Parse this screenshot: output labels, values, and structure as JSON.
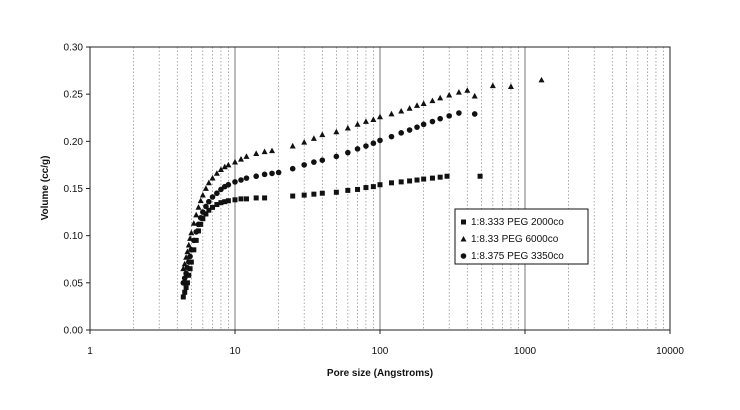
{
  "chart_data": {
    "type": "scatter",
    "title": "",
    "xlabel": "Pore size (Angstroms)",
    "ylabel": "Volume (cc/g)",
    "xscale": "log",
    "xlim": [
      1,
      10000
    ],
    "ylim": [
      0,
      0.3
    ],
    "x_ticks": [
      "1",
      "10",
      "100",
      "1000",
      "10000"
    ],
    "y_ticks": [
      "0.00",
      "0.05",
      "0.10",
      "0.15",
      "0.20",
      "0.25",
      "0.30"
    ],
    "grid": {
      "x_major": true,
      "x_minor": true,
      "y": false
    },
    "legend_position": "right-middle",
    "series": [
      {
        "name": "1:8.333 PEG 2000co",
        "marker": "square",
        "points": [
          [
            4.4,
            0.035
          ],
          [
            4.5,
            0.04
          ],
          [
            4.6,
            0.045
          ],
          [
            4.7,
            0.05
          ],
          [
            4.8,
            0.058
          ],
          [
            4.9,
            0.065
          ],
          [
            5.0,
            0.072
          ],
          [
            5.2,
            0.085
          ],
          [
            5.4,
            0.095
          ],
          [
            5.6,
            0.105
          ],
          [
            5.8,
            0.112
          ],
          [
            6.0,
            0.118
          ],
          [
            6.3,
            0.123
          ],
          [
            6.6,
            0.127
          ],
          [
            7.0,
            0.13
          ],
          [
            7.5,
            0.133
          ],
          [
            8.0,
            0.135
          ],
          [
            8.5,
            0.136
          ],
          [
            9.0,
            0.137
          ],
          [
            10,
            0.138
          ],
          [
            11,
            0.139
          ],
          [
            12,
            0.139
          ],
          [
            14,
            0.14
          ],
          [
            16,
            0.14
          ],
          [
            25,
            0.142
          ],
          [
            30,
            0.143
          ],
          [
            35,
            0.144
          ],
          [
            40,
            0.145
          ],
          [
            50,
            0.146
          ],
          [
            60,
            0.148
          ],
          [
            70,
            0.149
          ],
          [
            80,
            0.151
          ],
          [
            90,
            0.152
          ],
          [
            100,
            0.154
          ],
          [
            120,
            0.156
          ],
          [
            140,
            0.157
          ],
          [
            160,
            0.158
          ],
          [
            180,
            0.159
          ],
          [
            200,
            0.16
          ],
          [
            230,
            0.161
          ],
          [
            260,
            0.162
          ],
          [
            290,
            0.163
          ],
          [
            490,
            0.163
          ]
        ]
      },
      {
        "name": "1:8.33 PEG 6000co",
        "marker": "triangle",
        "points": [
          [
            4.4,
            0.065
          ],
          [
            4.5,
            0.07
          ],
          [
            4.6,
            0.077
          ],
          [
            4.7,
            0.083
          ],
          [
            4.8,
            0.09
          ],
          [
            4.9,
            0.097
          ],
          [
            5.0,
            0.103
          ],
          [
            5.2,
            0.113
          ],
          [
            5.4,
            0.122
          ],
          [
            5.6,
            0.13
          ],
          [
            5.8,
            0.137
          ],
          [
            6.0,
            0.143
          ],
          [
            6.3,
            0.15
          ],
          [
            6.6,
            0.156
          ],
          [
            7.0,
            0.161
          ],
          [
            7.5,
            0.166
          ],
          [
            8.0,
            0.17
          ],
          [
            8.5,
            0.173
          ],
          [
            9.0,
            0.175
          ],
          [
            10,
            0.178
          ],
          [
            11,
            0.181
          ],
          [
            12,
            0.184
          ],
          [
            14,
            0.187
          ],
          [
            16,
            0.189
          ],
          [
            18,
            0.19
          ],
          [
            25,
            0.195
          ],
          [
            30,
            0.199
          ],
          [
            35,
            0.203
          ],
          [
            40,
            0.207
          ],
          [
            50,
            0.21
          ],
          [
            60,
            0.214
          ],
          [
            70,
            0.218
          ],
          [
            80,
            0.221
          ],
          [
            90,
            0.223
          ],
          [
            100,
            0.226
          ],
          [
            120,
            0.229
          ],
          [
            140,
            0.232
          ],
          [
            160,
            0.235
          ],
          [
            180,
            0.238
          ],
          [
            200,
            0.24
          ],
          [
            230,
            0.243
          ],
          [
            260,
            0.246
          ],
          [
            300,
            0.249
          ],
          [
            350,
            0.252
          ],
          [
            400,
            0.254
          ],
          [
            450,
            0.248
          ],
          [
            600,
            0.259
          ],
          [
            800,
            0.258
          ],
          [
            1300,
            0.265
          ]
        ]
      },
      {
        "name": "1:8.375 PEG 3350co",
        "marker": "circle",
        "points": [
          [
            4.4,
            0.05
          ],
          [
            4.5,
            0.055
          ],
          [
            4.6,
            0.06
          ],
          [
            4.7,
            0.066
          ],
          [
            4.8,
            0.072
          ],
          [
            4.9,
            0.078
          ],
          [
            5.0,
            0.085
          ],
          [
            5.2,
            0.095
          ],
          [
            5.4,
            0.104
          ],
          [
            5.6,
            0.112
          ],
          [
            5.8,
            0.119
          ],
          [
            6.0,
            0.125
          ],
          [
            6.3,
            0.131
          ],
          [
            6.6,
            0.136
          ],
          [
            7.0,
            0.141
          ],
          [
            7.5,
            0.145
          ],
          [
            8.0,
            0.149
          ],
          [
            8.5,
            0.152
          ],
          [
            9.0,
            0.154
          ],
          [
            10,
            0.157
          ],
          [
            11,
            0.159
          ],
          [
            12,
            0.161
          ],
          [
            14,
            0.163
          ],
          [
            16,
            0.165
          ],
          [
            18,
            0.166
          ],
          [
            20,
            0.167
          ],
          [
            25,
            0.171
          ],
          [
            30,
            0.175
          ],
          [
            35,
            0.178
          ],
          [
            40,
            0.18
          ],
          [
            50,
            0.184
          ],
          [
            60,
            0.188
          ],
          [
            70,
            0.192
          ],
          [
            80,
            0.195
          ],
          [
            90,
            0.198
          ],
          [
            100,
            0.201
          ],
          [
            120,
            0.205
          ],
          [
            140,
            0.209
          ],
          [
            160,
            0.212
          ],
          [
            180,
            0.215
          ],
          [
            200,
            0.218
          ],
          [
            230,
            0.221
          ],
          [
            260,
            0.224
          ],
          [
            300,
            0.227
          ],
          [
            350,
            0.23
          ],
          [
            450,
            0.229
          ]
        ]
      }
    ]
  }
}
